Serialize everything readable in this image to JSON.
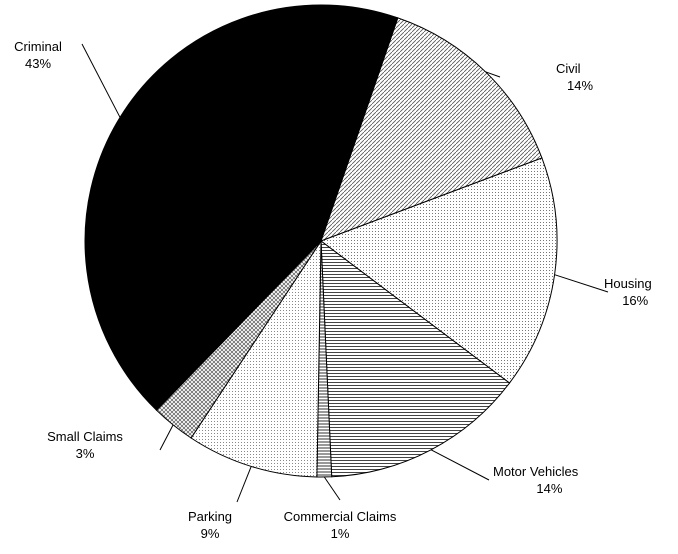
{
  "chart_data": {
    "type": "pie",
    "title": "",
    "categories": [
      "Civil",
      "Housing",
      "Motor Vehicles",
      "Commercial Claims",
      "Parking",
      "Small Claims",
      "Criminal"
    ],
    "values": [
      14,
      16,
      14,
      1,
      9,
      3,
      43
    ],
    "labels": [
      "14%",
      "16%",
      "14%",
      "1%",
      "9%",
      "3%",
      "43%"
    ],
    "slice_colors": [
      "#a9a9a9",
      "#e6e6e6",
      "#8c8c8c",
      "#7a7a7a",
      "#dcdcdc",
      "#9a9a9a",
      "#000000"
    ],
    "start_angle_deg": 19,
    "direction": "clockwise",
    "legend": "none"
  }
}
